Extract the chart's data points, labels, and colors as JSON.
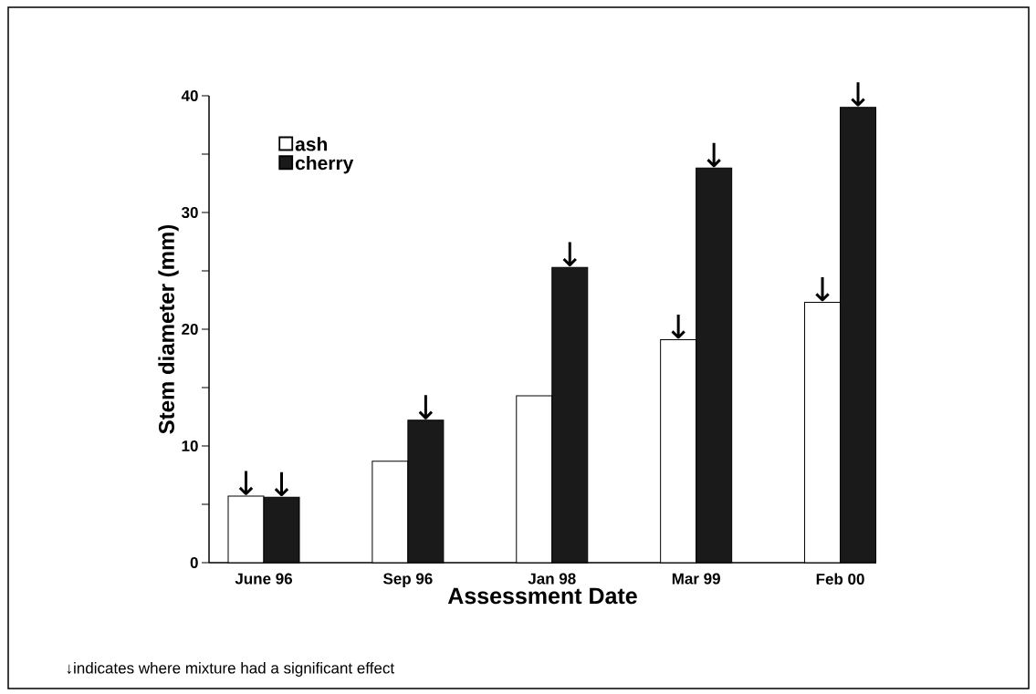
{
  "chart_data": {
    "type": "bar",
    "categories": [
      "June 96",
      "Sep 96",
      "Jan 98",
      "Mar 99",
      "Feb 00"
    ],
    "series": [
      {
        "name": "ash",
        "color": "#ffffff",
        "values": [
          5.7,
          8.7,
          14.3,
          19.1,
          22.3
        ]
      },
      {
        "name": "cherry",
        "color": "#1a1a1a",
        "values": [
          5.6,
          12.2,
          25.3,
          33.8,
          39.0
        ]
      }
    ],
    "xlabel": "Assessment Date",
    "ylabel": "Stem diameter (mm)",
    "ylim": [
      0,
      40
    ],
    "yticks": [
      0,
      {
        "value": 5,
        "label": null
      },
      10,
      {
        "value": 15,
        "label": null
      },
      20,
      {
        "value": 25,
        "label": null
      },
      30,
      {
        "value": 35,
        "label": null
      },
      40
    ],
    "legend": "top left",
    "grid": false,
    "annotations": [
      {
        "text": "↓",
        "x": "June 96",
        "y": 5.7
      },
      {
        "text": "↓",
        "x": "June 96",
        "y": 5.6
      },
      {
        "text": "↓",
        "x": "Sep 96",
        "y": 12.2
      },
      {
        "text": "↓",
        "x": "Jan 98",
        "y": 25.3
      },
      {
        "text": "↓",
        "x": "Mar 99",
        "y": 19.1
      },
      {
        "text": "↓",
        "x": "Mar 99",
        "y": 33.8
      },
      {
        "text": "↓",
        "x": "Feb 00",
        "y": 22.3
      },
      {
        "text": "↓",
        "x": "Feb 00",
        "y": 39.0
      },
      "↓indicates where mixture had a significant effect"
    ]
  }
}
